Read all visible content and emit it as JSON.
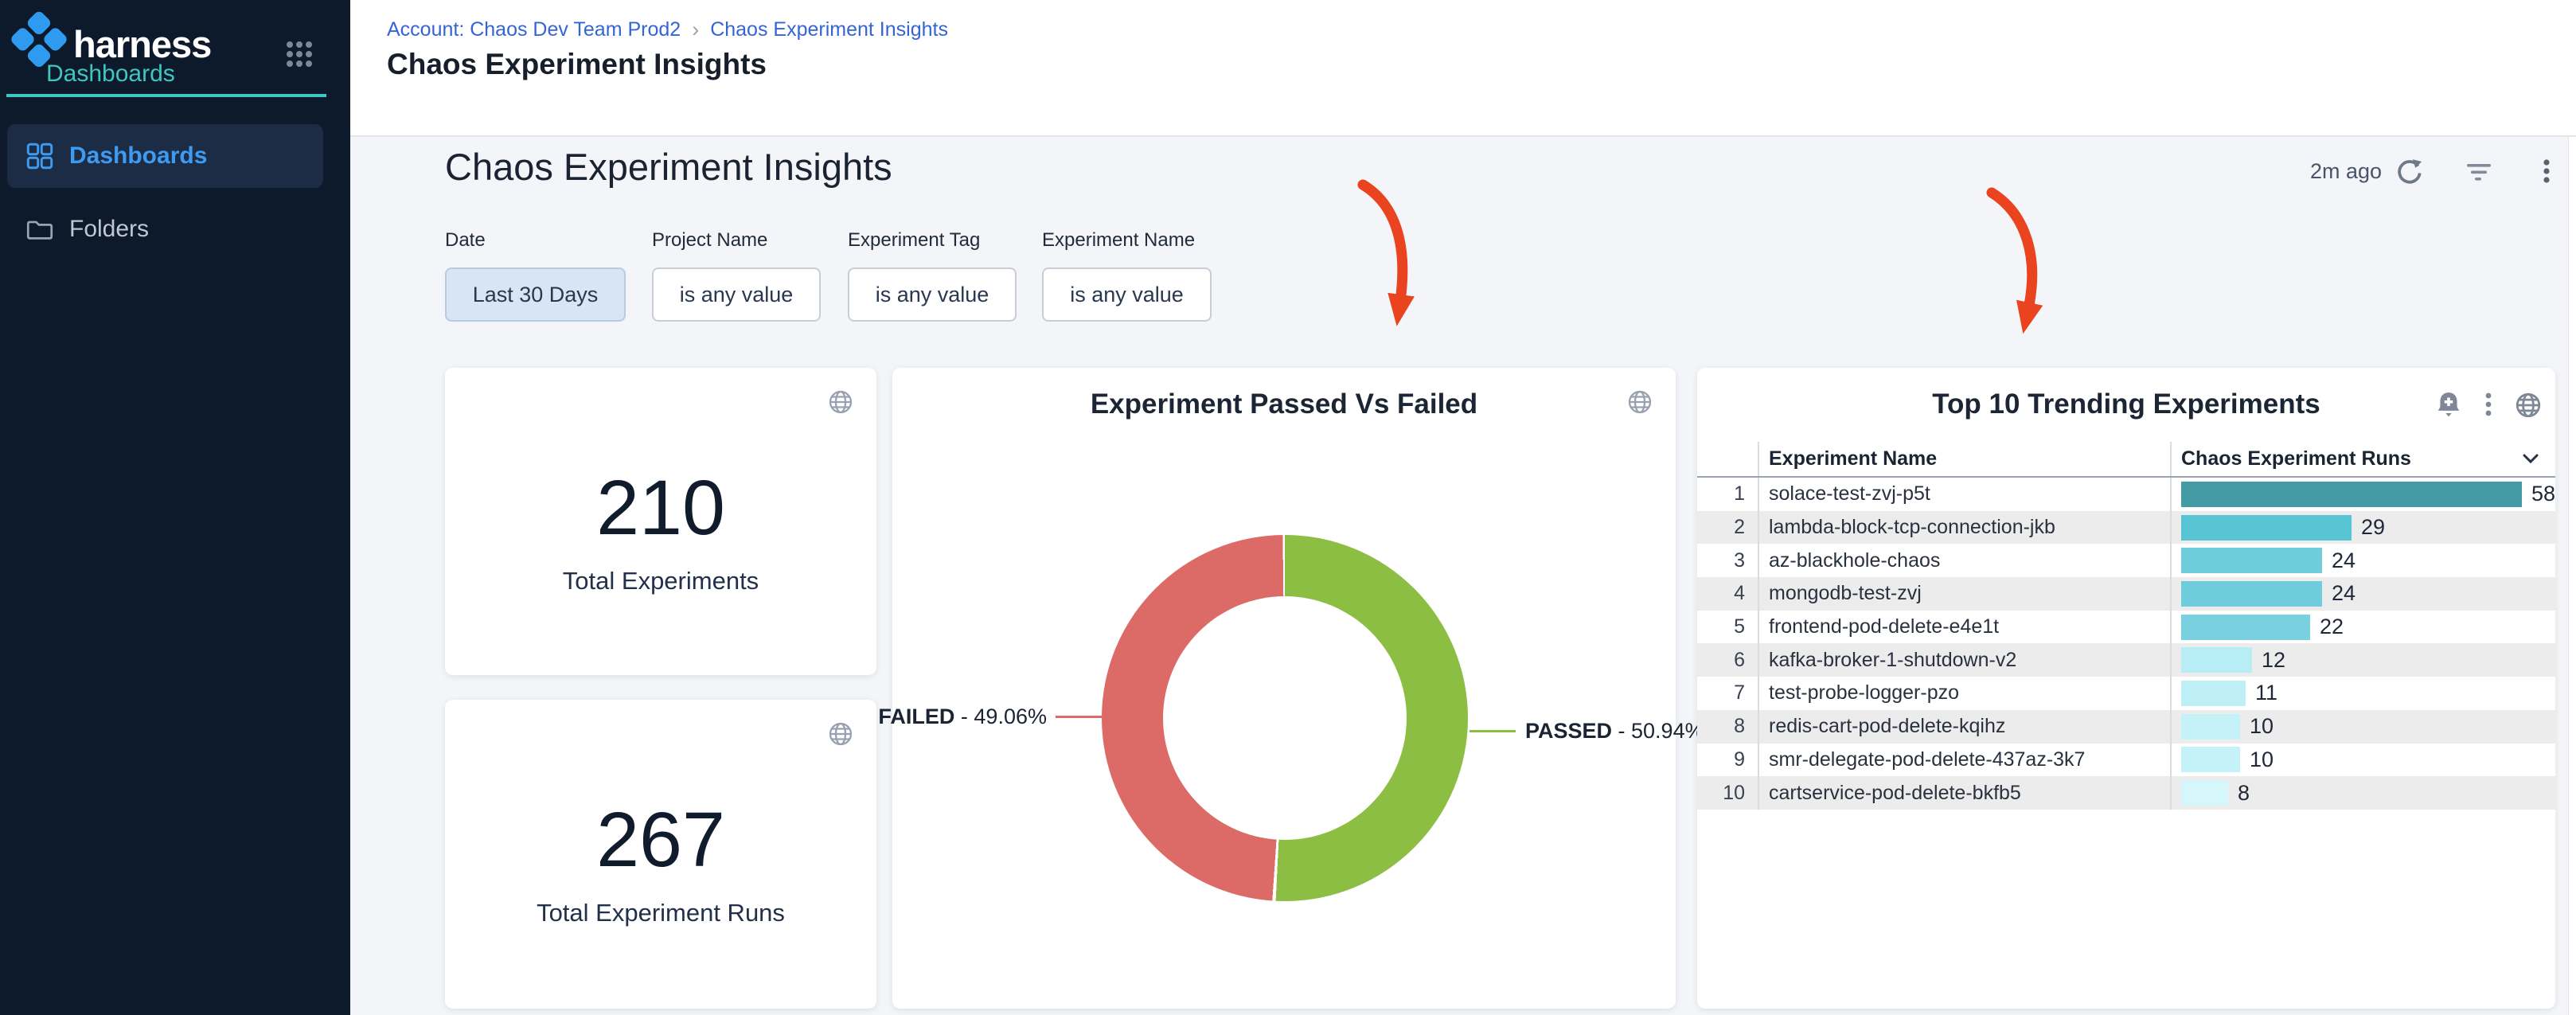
{
  "brand": {
    "name": "harness",
    "module": "Dashboards"
  },
  "sidebar": {
    "items": [
      {
        "label": "Dashboards",
        "active": true
      },
      {
        "label": "Folders",
        "active": false
      }
    ]
  },
  "breadcrumb": {
    "account": "Account: Chaos Dev Team Prod2",
    "separator": "›",
    "current": "Chaos Experiment Insights"
  },
  "header": {
    "title": "Chaos Experiment Insights"
  },
  "dashboard": {
    "title": "Chaos Experiment Insights",
    "last_refresh": "2m ago"
  },
  "filters": [
    {
      "label": "Date",
      "value": "Last 30 Days"
    },
    {
      "label": "Project Name",
      "value": "is any value"
    },
    {
      "label": "Experiment Tag",
      "value": "is any value"
    },
    {
      "label": "Experiment Name",
      "value": "is any value"
    }
  ],
  "stats": [
    {
      "value": "210",
      "label": "Total Experiments"
    },
    {
      "value": "267",
      "label": "Total Experiment Runs"
    }
  ],
  "colors": {
    "accent_teal": "#3EC6C1",
    "link_blue": "#3D9BF2",
    "breadcrumb_blue": "#3564D7",
    "passed_green": "#8CBE44",
    "failed_red": "#DC6B68",
    "annotation_arrow_red": "#E9431F"
  },
  "chart_data": [
    {
      "type": "pie",
      "donut": true,
      "title": "Experiment Passed Vs Failed",
      "slices": [
        {
          "label": "PASSED",
          "value": 50.94,
          "color": "#8CBE44"
        },
        {
          "label": "FAILED",
          "value": 49.06,
          "color": "#DC6B68"
        }
      ],
      "callouts": {
        "failed_name": "FAILED",
        "failed_value": " - 49.06%",
        "passed_name": "PASSED",
        "passed_value": " - 50.94%"
      },
      "legend_position": "callouts"
    },
    {
      "type": "bar",
      "orientation": "horizontal",
      "title": "Top 10 Trending Experiments",
      "columns": [
        "Experiment Name",
        "Chaos Experiment Runs"
      ],
      "categories": [
        "solace-test-zvj-p5t",
        "lambda-block-tcp-connection-jkb",
        "az-blackhole-chaos",
        "mongodb-test-zvj",
        "frontend-pod-delete-e4e1t",
        "kafka-broker-1-shutdown-v2",
        "test-probe-logger-pzo",
        "redis-cart-pod-delete-kqihz",
        "smr-delegate-pod-delete-437az-3k7",
        "cartservice-pod-delete-bkfb5"
      ],
      "values": [
        58,
        29,
        24,
        24,
        22,
        12,
        11,
        10,
        10,
        8
      ],
      "bar_colors": [
        "#459BA4",
        "#57C4D3",
        "#6FCCDB",
        "#6FCCDB",
        "#79D0DE",
        "#B9EDF5",
        "#BEEFF6",
        "#C5F1F8",
        "#C5F1F8",
        "#D5F7FB"
      ],
      "xlim": [
        0,
        60
      ],
      "value_labels": true,
      "grid": false
    }
  ]
}
